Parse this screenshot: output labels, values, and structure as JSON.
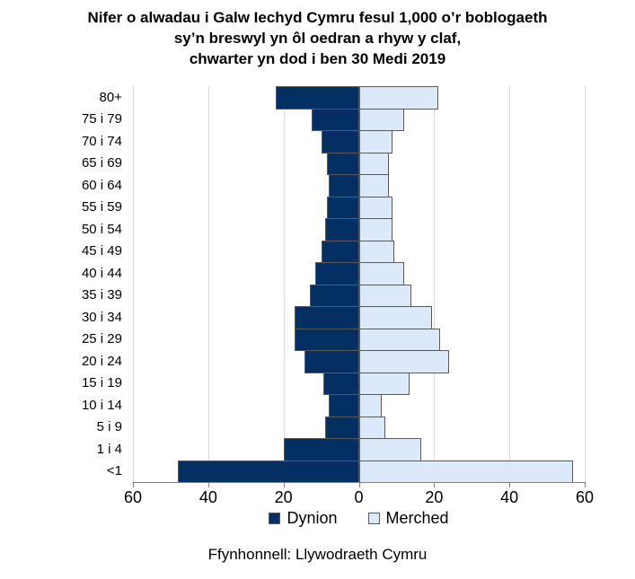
{
  "title": {
    "line1": "Nifer o alwadau i Galw Iechyd Cymru fesul 1,000 o’r boblogaeth",
    "line2": "sy’n breswyl yn ôl oedran a rhyw y claf,",
    "line3": "chwarter yn dod i ben 30 Medi 2019"
  },
  "source": "Ffynhonnell: Llywodraeth Cymru",
  "chart_data": {
    "type": "bar",
    "subtype": "population_pyramid",
    "orientation": "horizontal",
    "categories": [
      "80+",
      "75 i 79",
      "70 i 74",
      "65 i 69",
      "60 i 64",
      "55 i 59",
      "50 i 54",
      "45 i 49",
      "40 i 44",
      "35 i 39",
      "30 i 34",
      "25 i 29",
      "20 i 24",
      "15 i 19",
      "10 i 14",
      "5 i 9",
      "1 i 4",
      "<1"
    ],
    "categories_order": "top_to_bottom",
    "series": [
      {
        "name": "Dynion",
        "side": "left",
        "color": "#032f63",
        "values": [
          22,
          12.5,
          10,
          8.5,
          8,
          8.5,
          9,
          10,
          11.5,
          13,
          17,
          17,
          14.5,
          9.5,
          8,
          9,
          20,
          48
        ]
      },
      {
        "name": "Merched",
        "side": "right",
        "color": "#dbe9fa",
        "values": [
          21,
          12,
          9,
          8,
          8,
          9,
          9,
          9.5,
          12,
          14,
          19.5,
          21.5,
          24,
          13.5,
          6,
          7,
          16.5,
          57
        ]
      }
    ],
    "x_axis": {
      "tick_values": [
        -60,
        -40,
        -20,
        0,
        20,
        40,
        60
      ],
      "tick_labels": [
        "60",
        "40",
        "20",
        "0",
        "20",
        "40",
        "60"
      ],
      "max_abs": 60,
      "gridline_values": [
        -60,
        -40,
        -20,
        20,
        40,
        60
      ]
    },
    "ylabel": "",
    "xlabel": "",
    "grid": true,
    "legend_position": "bottom",
    "colors": {
      "bar_border": "#595959",
      "gridline": "#d9d9d9",
      "axis": "#7f7f7f",
      "text": "#000000"
    }
  }
}
